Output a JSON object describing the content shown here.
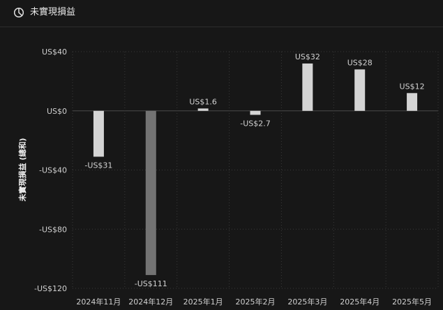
{
  "header": {
    "title": "未實現損益",
    "icon": "pie-chart-icon"
  },
  "chart_data": {
    "type": "bar",
    "title": "未實現損益",
    "ylabel": "未實現損益 (總和)",
    "xlabel": "",
    "categories": [
      "2024年11月",
      "2024年12月",
      "2025年1月",
      "2025年2月",
      "2025年3月",
      "2025年4月",
      "2025年5月"
    ],
    "values": [
      -31,
      -111,
      1.6,
      -2.7,
      32,
      28,
      12
    ],
    "data_labels": [
      "-US$31",
      "-US$111",
      "US$1.6",
      "-US$2.7",
      "US$32",
      "US$28",
      "US$12"
    ],
    "ylim": [
      -120,
      40
    ],
    "yticks": [
      40,
      0,
      -40,
      -80,
      -120
    ],
    "ytick_labels": [
      "US$40",
      "US$0",
      "-US$40",
      "-US$80",
      "-US$120"
    ],
    "grid": true,
    "legend": "none",
    "colors": {
      "bar": "#d4d4d4",
      "bar_highlight": "#737373",
      "grid": "#3a3a3a",
      "zero_line": "#4a4a4a"
    },
    "highlight_index": 1
  }
}
